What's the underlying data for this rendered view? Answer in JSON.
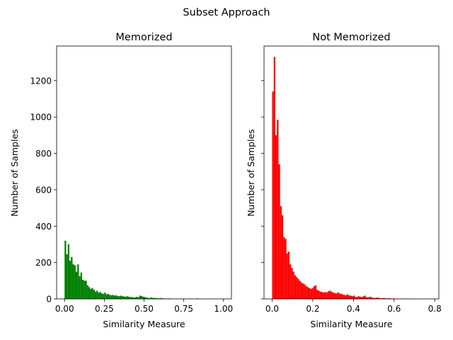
{
  "figure_title": "Subset Approach",
  "chart_data": [
    {
      "type": "bar",
      "subtype": "histogram",
      "title": "Memorized",
      "xlabel": "Similarity Measure",
      "ylabel": "Number of Samples",
      "color": "#008000",
      "xlim": [
        -0.05,
        1.05
      ],
      "ylim": [
        0,
        1390
      ],
      "xticks": [
        0.0,
        0.25,
        0.5,
        0.75,
        1.0
      ],
      "xtick_labels": [
        "0.00",
        "0.25",
        "0.50",
        "0.75",
        "1.00"
      ],
      "yticks": [
        0,
        200,
        400,
        600,
        800,
        1000,
        1200
      ],
      "ytick_labels": [
        "0",
        "200",
        "400",
        "600",
        "800",
        "1000",
        "1200"
      ],
      "bin_start": 0.0,
      "bin_width": 0.01,
      "values": [
        320,
        245,
        300,
        210,
        230,
        190,
        185,
        150,
        190,
        125,
        145,
        105,
        100,
        100,
        75,
        65,
        55,
        60,
        50,
        40,
        45,
        35,
        38,
        30,
        28,
        35,
        25,
        28,
        22,
        20,
        22,
        18,
        20,
        16,
        15,
        18,
        15,
        14,
        12,
        15,
        12,
        10,
        10,
        8,
        8,
        12,
        9,
        18,
        16,
        12,
        10,
        8,
        6,
        5,
        8,
        6,
        5,
        5,
        4,
        3,
        5,
        3,
        3,
        2,
        2,
        3,
        2,
        2,
        1,
        1,
        2,
        1,
        1,
        1,
        1,
        0,
        1,
        1,
        2,
        1,
        1,
        0,
        1,
        3,
        1,
        1,
        1,
        0,
        0,
        1,
        0,
        0,
        0,
        1,
        0,
        0,
        0,
        0,
        0,
        1
      ]
    },
    {
      "type": "bar",
      "subtype": "histogram",
      "title": "Not Memorized",
      "xlabel": "Similarity Measure",
      "ylabel": "Number of Samples",
      "color": "#ff0000",
      "xlim": [
        -0.04,
        0.82
      ],
      "ylim": [
        0,
        1390
      ],
      "xticks": [
        0.0,
        0.2,
        0.4,
        0.6,
        0.8
      ],
      "xtick_labels": [
        "0.0",
        "0.2",
        "0.4",
        "0.6",
        "0.8"
      ],
      "yticks": [
        0,
        200,
        400,
        600,
        800,
        1000,
        1200
      ],
      "bin_start": 0.0,
      "bin_width": 0.0078,
      "values": [
        1140,
        1330,
        900,
        985,
        740,
        510,
        460,
        340,
        330,
        250,
        260,
        190,
        170,
        150,
        130,
        120,
        110,
        100,
        90,
        85,
        80,
        70,
        65,
        60,
        55,
        60,
        70,
        75,
        50,
        45,
        40,
        38,
        35,
        38,
        35,
        42,
        45,
        40,
        35,
        32,
        30,
        36,
        30,
        28,
        25,
        22,
        20,
        25,
        20,
        18,
        15,
        18,
        12,
        10,
        15,
        12,
        10,
        14,
        18,
        10,
        8,
        12,
        10,
        6,
        5,
        6,
        8,
        5,
        4,
        4,
        5,
        3,
        3,
        4,
        3,
        2,
        3,
        2,
        2,
        1,
        2,
        1,
        1,
        2,
        1,
        1,
        0,
        1,
        1,
        0,
        2,
        1,
        0,
        1,
        0,
        1,
        1,
        0,
        0,
        1,
        0,
        0
      ]
    }
  ]
}
